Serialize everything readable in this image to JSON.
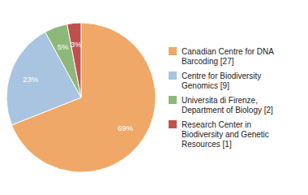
{
  "chart_data": {
    "type": "pie",
    "categories": [
      "Canadian Centre for DNA\nBarcoding [27]",
      "Centre for Biodiversity\nGenomics [9]",
      "Universita di Firenze,\nDepartment of Biology [2]",
      "Research Center in\nBiodiversity and Genetic\nResources [1]"
    ],
    "values": [
      69,
      23,
      5,
      3
    ],
    "value_labels": [
      "69%",
      "23%",
      "5%",
      "3%"
    ],
    "colors": [
      "#f0a868",
      "#a8c4e0",
      "#8db87a",
      "#c0504d"
    ],
    "data_labels": true,
    "legend": "right"
  }
}
